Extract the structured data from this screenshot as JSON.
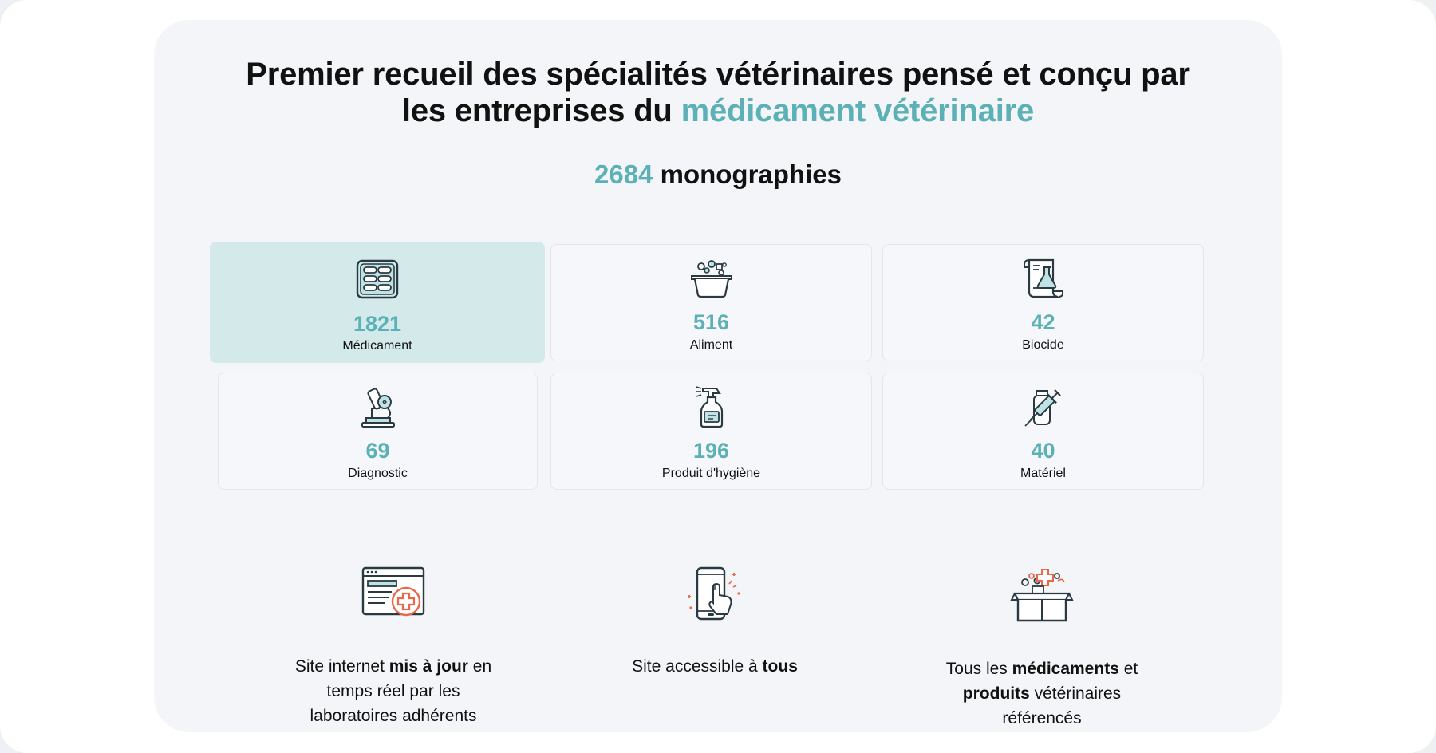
{
  "header": {
    "title_line1": "Premier recueil des spécialités vétérinaires pensé et conçu par",
    "title_line2_prefix": "les entreprises du ",
    "title_line2_accent": "médicament vétérinaire"
  },
  "summary": {
    "count": "2684",
    "label": " monographies"
  },
  "categories": [
    {
      "count": "1821",
      "label": "Médicament",
      "icon": "pill-blister-icon",
      "selected": true
    },
    {
      "count": "516",
      "label": "Aliment",
      "icon": "food-bowl-icon",
      "selected": false
    },
    {
      "count": "42",
      "label": "Biocide",
      "icon": "flask-scroll-icon",
      "selected": false
    },
    {
      "count": "69",
      "label": "Diagnostic",
      "icon": "microscope-icon",
      "selected": false
    },
    {
      "count": "196",
      "label": "Produit d'hygiène",
      "icon": "spray-bottle-icon",
      "selected": false
    },
    {
      "count": "40",
      "label": "Matériel",
      "icon": "syringe-icon",
      "selected": false
    }
  ],
  "features": [
    {
      "icon": "browser-medical-icon",
      "t1": "Site internet ",
      "b1": "mis à jour",
      "t2": " en",
      "line2": "temps réel par les",
      "line3": "laboratoires adhérents"
    },
    {
      "icon": "phone-touch-icon",
      "t1": "Site accessible à ",
      "b1": "tous"
    },
    {
      "icon": "box-products-icon",
      "t1": "Tous les ",
      "b1": "médicaments",
      "t2": " et",
      "b2": "produits",
      "t3": " vétérinaires",
      "line3": "référencés"
    }
  ],
  "colors": {
    "accent": "#5bb1b5",
    "selected_card": "#d3e9ea",
    "icon_orange": "#e8694a",
    "panel": "#f4f5f8"
  }
}
